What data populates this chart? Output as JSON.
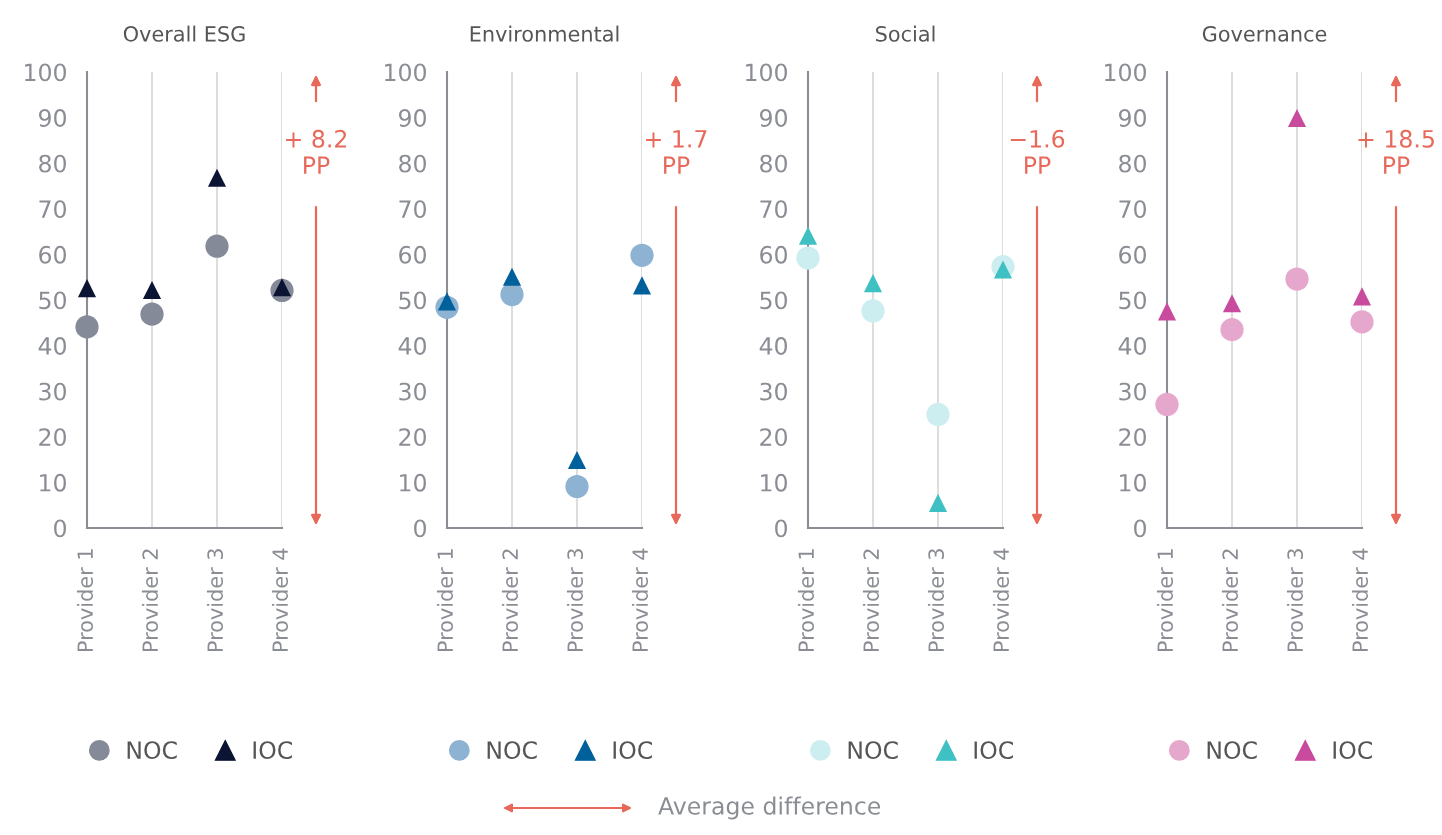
{
  "chart_data": [
    {
      "type": "scatter",
      "title": "Overall ESG",
      "categories": [
        "Provider 1",
        "Provider 2",
        "Provider 3",
        "Provider 4"
      ],
      "ylim": [
        0,
        100
      ],
      "yticks": [
        0,
        10,
        20,
        30,
        40,
        50,
        60,
        70,
        80,
        90,
        100
      ],
      "grid": "x",
      "legend": "bottom",
      "series": [
        {
          "name": "NOC",
          "color": "#858a99",
          "marker": "circle",
          "values": [
            44.1,
            46.9,
            61.8,
            52.1
          ]
        },
        {
          "name": "IOC",
          "color": "#0b1433",
          "marker": "triangle",
          "values": [
            52.6,
            52.2,
            76.8,
            52.8
          ]
        }
      ],
      "annotations": [
        "+ 8.2\nPP"
      ]
    },
    {
      "type": "scatter",
      "title": "Environmental",
      "categories": [
        "Provider 1",
        "Provider 2",
        "Provider 3",
        "Provider 4"
      ],
      "ylim": [
        0,
        100
      ],
      "yticks": [
        0,
        10,
        20,
        30,
        40,
        50,
        60,
        70,
        80,
        90,
        100
      ],
      "grid": "x",
      "legend": "bottom",
      "series": [
        {
          "name": "NOC",
          "color": "#8eb3d2",
          "marker": "circle",
          "values": [
            48.4,
            51.2,
            9.1,
            59.8
          ]
        },
        {
          "name": "IOC",
          "color": "#00609c",
          "marker": "triangle",
          "values": [
            49.7,
            55.1,
            14.9,
            53.2
          ]
        }
      ],
      "annotations": [
        "+ 1.7\nPP"
      ]
    },
    {
      "type": "scatter",
      "title": "Social",
      "categories": [
        "Provider 1",
        "Provider 2",
        "Provider 3",
        "Provider 4"
      ],
      "ylim": [
        0,
        100
      ],
      "yticks": [
        0,
        10,
        20,
        30,
        40,
        50,
        60,
        70,
        80,
        90,
        100
      ],
      "grid": "x",
      "legend": "bottom",
      "series": [
        {
          "name": "NOC",
          "color": "#cdeef0",
          "marker": "circle",
          "values": [
            59.2,
            47.6,
            24.9,
            57.3
          ]
        },
        {
          "name": "IOC",
          "color": "#3fc1c4",
          "marker": "triangle",
          "values": [
            64.1,
            53.7,
            5.5,
            56.7
          ]
        }
      ],
      "annotations": [
        "−1.6\nPP"
      ]
    },
    {
      "type": "scatter",
      "title": "Governance",
      "categories": [
        "Provider 1",
        "Provider 2",
        "Provider 3",
        "Provider 4"
      ],
      "ylim": [
        0,
        100
      ],
      "yticks": [
        0,
        10,
        20,
        30,
        40,
        50,
        60,
        70,
        80,
        90,
        100
      ],
      "grid": "x",
      "legend": "bottom",
      "series": [
        {
          "name": "NOC",
          "color": "#e6a7cc",
          "marker": "circle",
          "values": [
            27.1,
            43.5,
            54.6,
            45.2
          ]
        },
        {
          "name": "IOC",
          "color": "#c94b9e",
          "marker": "triangle",
          "values": [
            47.5,
            49.3,
            89.9,
            50.8
          ]
        }
      ],
      "annotations": [
        "+ 18.5\nPP",
        "Average difference"
      ]
    }
  ]
}
